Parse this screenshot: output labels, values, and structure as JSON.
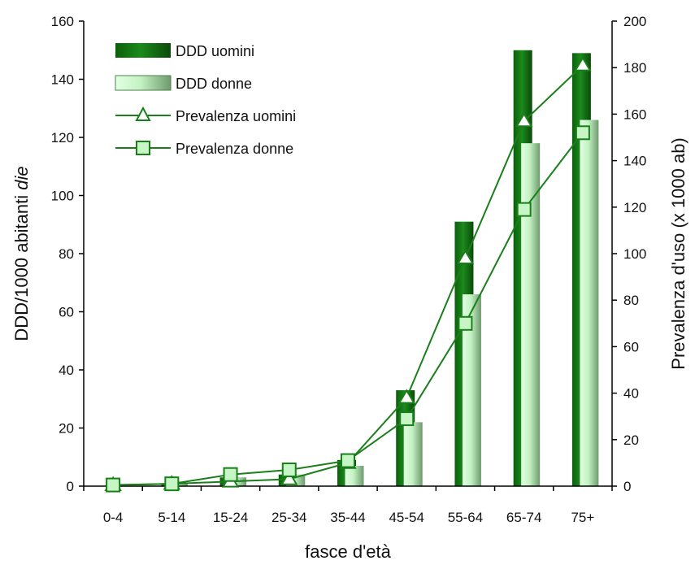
{
  "chart_data": {
    "type": "bar",
    "categories": [
      "0-4",
      "5-14",
      "15-24",
      "25-34",
      "35-44",
      "45-54",
      "55-64",
      "65-74",
      "75+"
    ],
    "series": [
      {
        "name": "DDD uomini",
        "kind": "bar",
        "axis": "left",
        "color": "#1a7f1a",
        "values": [
          0.1,
          1,
          3,
          4,
          9,
          33,
          91,
          150,
          149
        ]
      },
      {
        "name": "DDD donne",
        "kind": "bar",
        "axis": "left",
        "color": "#b8ecb8",
        "values": [
          0.1,
          1,
          3,
          4,
          7,
          22,
          66,
          118,
          126
        ]
      },
      {
        "name": "Prevalenza uomini",
        "kind": "line",
        "axis": "right",
        "marker": "triangle",
        "color": "#1a7f1a",
        "values": [
          0.5,
          1,
          2,
          3,
          10,
          38,
          98,
          157,
          181
        ]
      },
      {
        "name": "Prevalenza donne",
        "kind": "line",
        "axis": "right",
        "marker": "square",
        "color": "#1a7f1a",
        "values": [
          0.5,
          1,
          5,
          7,
          11,
          29,
          70,
          119,
          152
        ]
      }
    ],
    "xlabel": "fasce d'età",
    "ylabel_left_main": "DDD/1000 abitanti ",
    "ylabel_left_em": "die",
    "ylabel_right": "Prevalenza d'uso (x 1000 ab)",
    "y_left": {
      "min": 0,
      "max": 160,
      "step": 20
    },
    "y_right": {
      "min": 0,
      "max": 200,
      "step": 20
    },
    "legend_position": "top-left",
    "grid": false
  }
}
